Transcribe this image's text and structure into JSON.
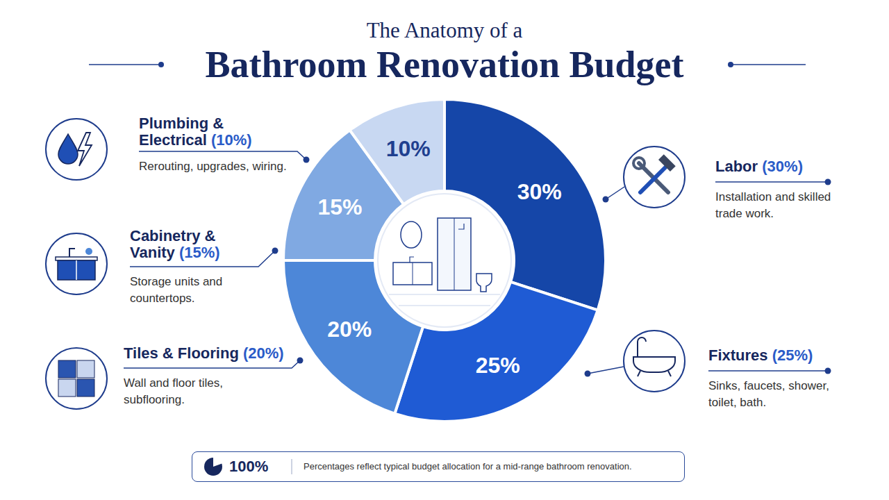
{
  "chart_data": {
    "type": "pie",
    "subtitle": "The Anatomy of a",
    "title": "Bathroom Renovation Budget",
    "categories": [
      "Labor",
      "Fixtures",
      "Tiles & Flooring",
      "Cabinetry & Vanity",
      "Plumbing & Electrical"
    ],
    "values": [
      30,
      25,
      20,
      15,
      10
    ],
    "value_labels": [
      "30%",
      "25%",
      "20%",
      "15%",
      "10%"
    ],
    "colors": [
      "#1546a8",
      "#1f5bd4",
      "#4d87d8",
      "#80a9e2",
      "#c8d8f2"
    ],
    "data_labels": true,
    "share_labels": [
      "(30%)",
      "(25%)",
      "(20%)",
      "(15%)",
      "(10%)"
    ],
    "descriptions": [
      "Installation and skilled trade work.",
      "Sinks, faucets, shower, toilet, bath.",
      "Wall and floor tiles, subflooring.",
      "Storage units and countertops.",
      "Rerouting, upgrades, wiring."
    ],
    "footnote_total": "100%",
    "footnote": "Percentages reflect typical budget allocation for a mid-range bathroom renovation."
  }
}
